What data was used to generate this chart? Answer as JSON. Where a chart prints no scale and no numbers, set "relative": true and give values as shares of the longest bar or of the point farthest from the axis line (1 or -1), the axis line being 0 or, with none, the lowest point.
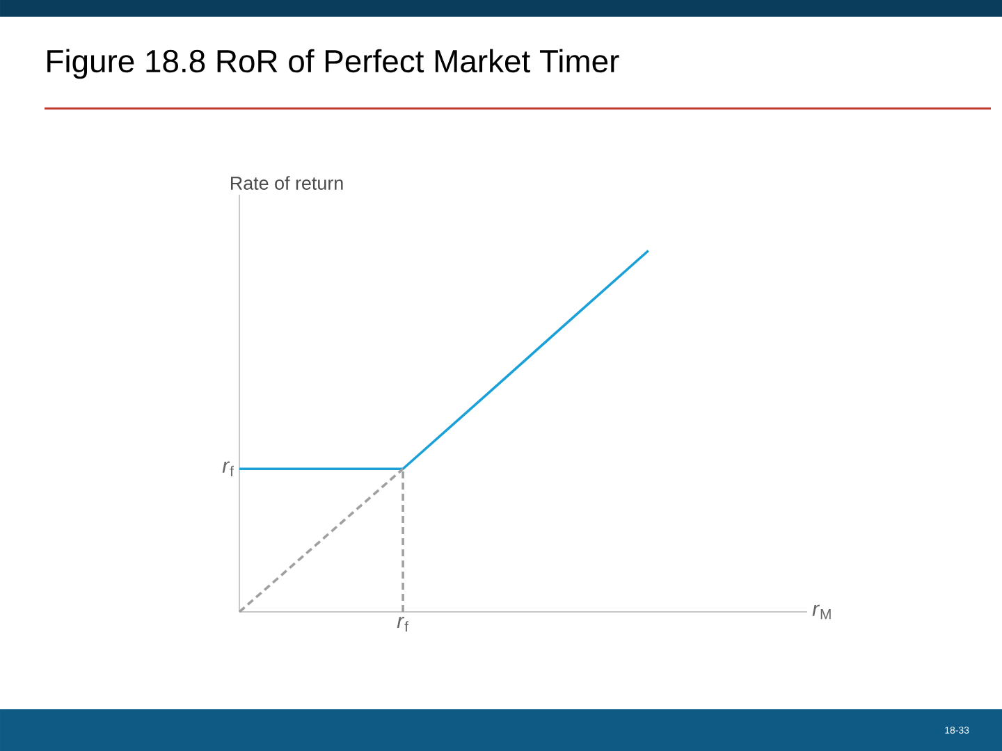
{
  "chart_data": {
    "type": "line",
    "title": "Figure 18.8 RoR of Perfect Market Timer",
    "ylabel": "Rate of return",
    "xlabel": "*r*$_{M}$",
    "relative": true,
    "categories": [
      null,
      null,
      null,
      null,
      null,
      null,
      null
    ],
    "series": [
      {
        "color": "#1ba1d8",
        "values": [
          0.396,
          0.396,
          0.396,
          0.597,
          0.799,
          1,
          null
        ],
        "line_style": "solid"
      },
      {
        "color": "#a0a0a0",
        "values": [
          0,
          0.198,
          0.396,
          null,
          null,
          null,
          null
        ],
        "line_style": "dashed"
      }
    ],
    "annotations": [
      "*r*$_{f}$",
      "*r*$_{f}$",
      "18-33"
    ]
  }
}
